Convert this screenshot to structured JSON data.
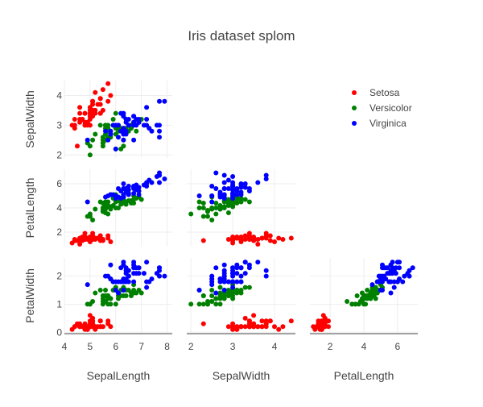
{
  "chart_data": {
    "type": "scatter",
    "subtype": "splom",
    "title": "Iris dataset splom",
    "dimensions": [
      "SepalLength",
      "SepalWidth",
      "PetalLength",
      "PetalWidth"
    ],
    "x_dimensions": [
      "SepalLength",
      "SepalWidth",
      "PetalLength"
    ],
    "y_dimensions": [
      "SepalWidth",
      "PetalLength",
      "PetalWidth"
    ],
    "ranges": {
      "SepalLength": [
        4,
        8.2
      ],
      "SepalWidth": [
        1.9,
        4.5
      ],
      "PetalLength": [
        0.8,
        7.2
      ],
      "PetalWidth": [
        -0.05,
        2.65
      ]
    },
    "ticks": {
      "SepalLength": [
        "4",
        "5",
        "6",
        "7",
        "8"
      ],
      "SepalWidth": [
        "2",
        "3",
        "4"
      ],
      "PetalLength": [
        "2",
        "4",
        "6"
      ],
      "PetalWidth": [
        "0",
        "1",
        "2"
      ]
    },
    "diagonal_visible": false,
    "show_upper_half": false,
    "grid": true,
    "legend_position": "top-right",
    "series": [
      {
        "name": "Setosa",
        "color": "#ff0000",
        "points": [
          [
            5.1,
            3.5,
            1.4,
            0.2
          ],
          [
            4.9,
            3.0,
            1.4,
            0.2
          ],
          [
            4.7,
            3.2,
            1.3,
            0.2
          ],
          [
            4.6,
            3.1,
            1.5,
            0.2
          ],
          [
            5.0,
            3.6,
            1.4,
            0.2
          ],
          [
            5.4,
            3.9,
            1.7,
            0.4
          ],
          [
            4.6,
            3.4,
            1.4,
            0.3
          ],
          [
            5.0,
            3.4,
            1.5,
            0.2
          ],
          [
            4.4,
            2.9,
            1.4,
            0.2
          ],
          [
            4.9,
            3.1,
            1.5,
            0.1
          ],
          [
            5.4,
            3.7,
            1.5,
            0.2
          ],
          [
            4.8,
            3.4,
            1.6,
            0.2
          ],
          [
            4.8,
            3.0,
            1.4,
            0.1
          ],
          [
            4.3,
            3.0,
            1.1,
            0.1
          ],
          [
            5.8,
            4.0,
            1.2,
            0.2
          ],
          [
            5.7,
            4.4,
            1.5,
            0.4
          ],
          [
            5.4,
            3.9,
            1.3,
            0.4
          ],
          [
            5.1,
            3.5,
            1.4,
            0.3
          ],
          [
            5.7,
            3.8,
            1.7,
            0.3
          ],
          [
            5.1,
            3.8,
            1.5,
            0.3
          ],
          [
            5.4,
            3.4,
            1.7,
            0.2
          ],
          [
            5.1,
            3.7,
            1.5,
            0.4
          ],
          [
            4.6,
            3.6,
            1.0,
            0.2
          ],
          [
            5.1,
            3.3,
            1.7,
            0.5
          ],
          [
            4.8,
            3.4,
            1.9,
            0.2
          ],
          [
            5.0,
            3.0,
            1.6,
            0.2
          ],
          [
            5.0,
            3.4,
            1.6,
            0.4
          ],
          [
            5.2,
            3.5,
            1.5,
            0.2
          ],
          [
            5.2,
            3.4,
            1.4,
            0.2
          ],
          [
            4.7,
            3.2,
            1.6,
            0.2
          ],
          [
            4.8,
            3.1,
            1.6,
            0.2
          ],
          [
            5.4,
            3.4,
            1.5,
            0.4
          ],
          [
            5.2,
            4.1,
            1.5,
            0.1
          ],
          [
            5.5,
            4.2,
            1.4,
            0.2
          ],
          [
            4.9,
            3.1,
            1.5,
            0.1
          ],
          [
            5.0,
            3.2,
            1.2,
            0.2
          ],
          [
            5.5,
            3.5,
            1.3,
            0.2
          ],
          [
            4.9,
            3.1,
            1.5,
            0.1
          ],
          [
            4.4,
            3.0,
            1.3,
            0.2
          ],
          [
            5.1,
            3.4,
            1.5,
            0.2
          ],
          [
            5.0,
            3.5,
            1.3,
            0.3
          ],
          [
            4.5,
            2.3,
            1.3,
            0.3
          ],
          [
            4.4,
            3.2,
            1.3,
            0.2
          ],
          [
            5.0,
            3.5,
            1.6,
            0.6
          ],
          [
            5.1,
            3.8,
            1.9,
            0.4
          ],
          [
            4.8,
            3.0,
            1.4,
            0.3
          ],
          [
            5.1,
            3.8,
            1.6,
            0.2
          ],
          [
            4.6,
            3.2,
            1.4,
            0.2
          ],
          [
            5.3,
            3.7,
            1.5,
            0.2
          ],
          [
            5.0,
            3.3,
            1.4,
            0.2
          ]
        ]
      },
      {
        "name": "Versicolor",
        "color": "#008000",
        "points": [
          [
            7.0,
            3.2,
            4.7,
            1.4
          ],
          [
            6.4,
            3.2,
            4.5,
            1.5
          ],
          [
            6.9,
            3.1,
            4.9,
            1.5
          ],
          [
            5.5,
            2.3,
            4.0,
            1.3
          ],
          [
            6.5,
            2.8,
            4.6,
            1.5
          ],
          [
            5.7,
            2.8,
            4.5,
            1.3
          ],
          [
            6.3,
            3.3,
            4.7,
            1.6
          ],
          [
            4.9,
            2.4,
            3.3,
            1.0
          ],
          [
            6.6,
            2.9,
            4.6,
            1.3
          ],
          [
            5.2,
            2.7,
            3.9,
            1.4
          ],
          [
            5.0,
            2.0,
            3.5,
            1.0
          ],
          [
            5.9,
            3.0,
            4.2,
            1.5
          ],
          [
            6.0,
            2.2,
            4.0,
            1.0
          ],
          [
            6.1,
            2.9,
            4.7,
            1.4
          ],
          [
            5.6,
            2.9,
            3.6,
            1.3
          ],
          [
            6.7,
            3.1,
            4.4,
            1.4
          ],
          [
            5.6,
            3.0,
            4.5,
            1.5
          ],
          [
            5.8,
            2.7,
            4.1,
            1.0
          ],
          [
            6.2,
            2.2,
            4.5,
            1.5
          ],
          [
            5.6,
            2.5,
            3.9,
            1.1
          ],
          [
            5.9,
            3.2,
            4.8,
            1.8
          ],
          [
            6.1,
            2.8,
            4.0,
            1.3
          ],
          [
            6.3,
            2.5,
            4.9,
            1.5
          ],
          [
            6.1,
            2.8,
            4.7,
            1.2
          ],
          [
            6.4,
            2.9,
            4.3,
            1.3
          ],
          [
            6.6,
            3.0,
            4.4,
            1.4
          ],
          [
            6.8,
            2.8,
            4.8,
            1.4
          ],
          [
            6.7,
            3.0,
            5.0,
            1.7
          ],
          [
            6.0,
            2.9,
            4.5,
            1.5
          ],
          [
            5.7,
            2.6,
            3.5,
            1.0
          ],
          [
            5.5,
            2.4,
            3.8,
            1.1
          ],
          [
            5.5,
            2.4,
            3.7,
            1.0
          ],
          [
            5.8,
            2.7,
            3.9,
            1.2
          ],
          [
            6.0,
            2.7,
            5.1,
            1.6
          ],
          [
            5.4,
            3.0,
            4.5,
            1.5
          ],
          [
            6.0,
            3.4,
            4.5,
            1.6
          ],
          [
            6.7,
            3.1,
            4.7,
            1.5
          ],
          [
            6.3,
            2.3,
            4.4,
            1.3
          ],
          [
            5.6,
            3.0,
            4.1,
            1.3
          ],
          [
            5.5,
            2.5,
            4.0,
            1.3
          ],
          [
            5.5,
            2.6,
            4.4,
            1.2
          ],
          [
            6.1,
            3.0,
            4.6,
            1.4
          ],
          [
            5.8,
            2.6,
            4.0,
            1.2
          ],
          [
            5.0,
            2.3,
            3.3,
            1.0
          ],
          [
            5.6,
            2.7,
            4.2,
            1.3
          ],
          [
            5.7,
            3.0,
            4.2,
            1.2
          ],
          [
            5.7,
            2.9,
            4.2,
            1.3
          ],
          [
            6.2,
            2.9,
            4.3,
            1.3
          ],
          [
            5.1,
            2.5,
            3.0,
            1.1
          ],
          [
            5.7,
            2.8,
            4.1,
            1.3
          ]
        ]
      },
      {
        "name": "Virginica",
        "color": "#0000ff",
        "points": [
          [
            6.3,
            3.3,
            6.0,
            2.5
          ],
          [
            5.8,
            2.7,
            5.1,
            1.9
          ],
          [
            7.1,
            3.0,
            5.9,
            2.1
          ],
          [
            6.3,
            2.9,
            5.6,
            1.8
          ],
          [
            6.5,
            3.0,
            5.8,
            2.2
          ],
          [
            7.6,
            3.0,
            6.6,
            2.1
          ],
          [
            4.9,
            2.5,
            4.5,
            1.7
          ],
          [
            7.3,
            2.9,
            6.3,
            1.8
          ],
          [
            6.7,
            2.5,
            5.8,
            1.8
          ],
          [
            7.2,
            3.6,
            6.1,
            2.5
          ],
          [
            6.5,
            3.2,
            5.1,
            2.0
          ],
          [
            6.4,
            2.7,
            5.3,
            1.9
          ],
          [
            6.8,
            3.0,
            5.5,
            2.1
          ],
          [
            5.7,
            2.5,
            5.0,
            2.0
          ],
          [
            5.8,
            2.8,
            5.1,
            2.4
          ],
          [
            6.4,
            3.2,
            5.3,
            2.3
          ],
          [
            6.5,
            3.0,
            5.5,
            1.8
          ],
          [
            7.7,
            3.8,
            6.7,
            2.2
          ],
          [
            7.7,
            2.6,
            6.9,
            2.3
          ],
          [
            6.0,
            2.2,
            5.0,
            1.5
          ],
          [
            6.9,
            3.2,
            5.7,
            2.3
          ],
          [
            5.6,
            2.8,
            4.9,
            2.0
          ],
          [
            7.7,
            2.8,
            6.7,
            2.0
          ],
          [
            6.3,
            2.7,
            4.9,
            1.8
          ],
          [
            6.7,
            3.3,
            5.7,
            2.1
          ],
          [
            7.2,
            3.2,
            6.0,
            1.8
          ],
          [
            6.2,
            2.8,
            4.8,
            1.8
          ],
          [
            6.1,
            3.0,
            4.9,
            1.8
          ],
          [
            6.4,
            2.8,
            5.6,
            2.1
          ],
          [
            7.2,
            3.0,
            5.8,
            1.6
          ],
          [
            7.4,
            2.8,
            6.1,
            1.9
          ],
          [
            7.9,
            3.8,
            6.4,
            2.0
          ],
          [
            6.4,
            2.8,
            5.6,
            2.2
          ],
          [
            6.3,
            2.8,
            5.1,
            1.5
          ],
          [
            6.1,
            2.6,
            5.6,
            1.4
          ],
          [
            7.7,
            3.0,
            6.1,
            2.3
          ],
          [
            6.3,
            3.4,
            5.6,
            2.4
          ],
          [
            6.4,
            3.1,
            5.5,
            1.8
          ],
          [
            6.0,
            3.0,
            4.8,
            1.8
          ],
          [
            6.9,
            3.1,
            5.4,
            2.1
          ],
          [
            6.7,
            3.1,
            5.6,
            2.4
          ],
          [
            6.9,
            3.1,
            5.1,
            2.3
          ],
          [
            5.8,
            2.7,
            5.1,
            1.9
          ],
          [
            6.8,
            3.2,
            5.9,
            2.3
          ],
          [
            6.7,
            3.3,
            5.7,
            2.5
          ],
          [
            6.7,
            3.0,
            5.2,
            2.3
          ],
          [
            6.3,
            2.5,
            5.0,
            1.9
          ],
          [
            6.5,
            3.0,
            5.2,
            2.0
          ],
          [
            6.2,
            3.4,
            5.4,
            2.3
          ],
          [
            5.9,
            3.0,
            5.1,
            1.8
          ]
        ]
      }
    ]
  }
}
